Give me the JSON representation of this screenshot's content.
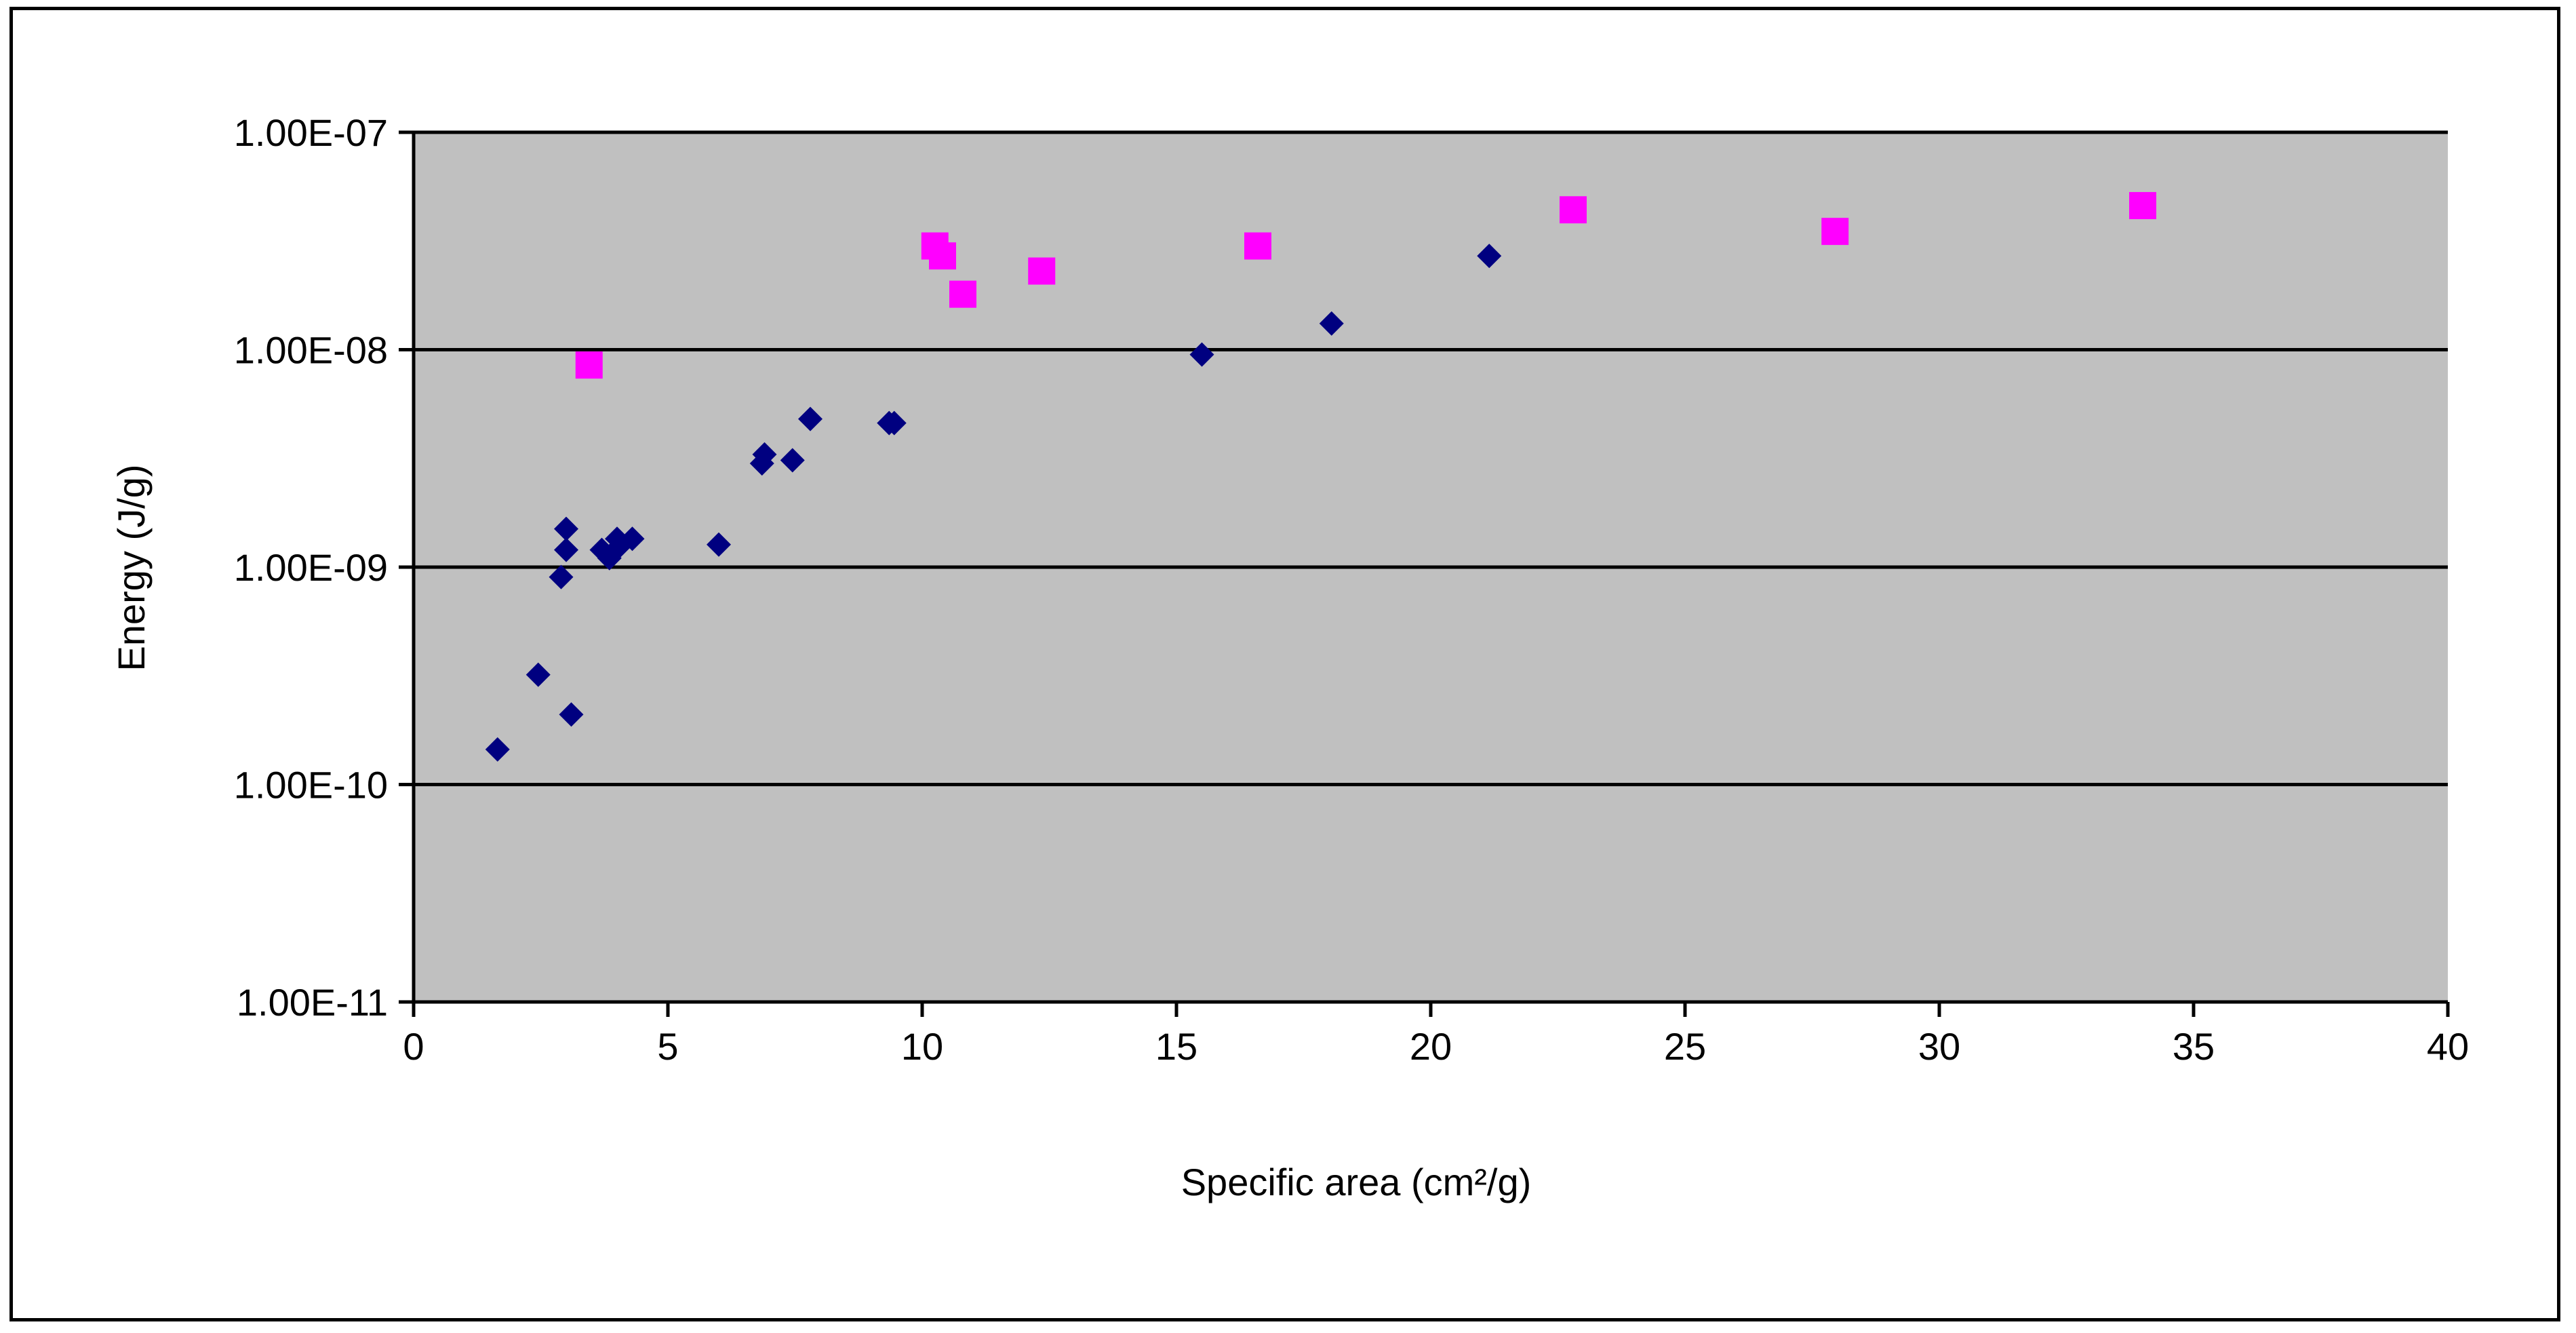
{
  "chart_data": {
    "type": "scatter",
    "title": "",
    "xlabel": "Specific area (cm²/g)",
    "ylabel": "Energy (J/g)",
    "xlim": [
      0,
      40
    ],
    "ylim": [
      1e-11,
      1e-07
    ],
    "y_scale": "log",
    "x_ticks": [
      "0",
      "5",
      "10",
      "15",
      "20",
      "25",
      "30",
      "35",
      "40"
    ],
    "y_ticks": [
      "1.00E-11",
      "1.00E-10",
      "1.00E-09",
      "1.00E-08",
      "1.00E-07"
    ],
    "grid": "horizontal major gridlines",
    "plot_background": "#c0c0c0",
    "legend": "none",
    "series": [
      {
        "marker": "diamond",
        "color": "#000080",
        "points": [
          [
            1.65,
            1.45e-10
          ],
          [
            2.45,
            3.2e-10
          ],
          [
            2.9,
            9e-10
          ],
          [
            3.0,
            1.5e-09
          ],
          [
            3.0,
            1.2e-09
          ],
          [
            3.1,
            2.1e-10
          ],
          [
            3.7,
            1.2e-09
          ],
          [
            3.85,
            1.1e-09
          ],
          [
            4.0,
            1.35e-09
          ],
          [
            4.05,
            1.25e-09
          ],
          [
            4.3,
            1.35e-09
          ],
          [
            6.0,
            1.27e-09
          ],
          [
            6.85,
            3e-09
          ],
          [
            6.9,
            3.3e-09
          ],
          [
            7.45,
            3.1e-09
          ],
          [
            7.8,
            4.8e-09
          ],
          [
            9.35,
            4.6e-09
          ],
          [
            9.45,
            4.6e-09
          ],
          [
            15.5,
            9.5e-09
          ],
          [
            18.05,
            1.32e-08
          ],
          [
            21.15,
            2.7e-08
          ]
        ]
      },
      {
        "marker": "square",
        "color": "#ff00ff",
        "points": [
          [
            3.45,
            8.5e-09
          ],
          [
            10.25,
            3e-08
          ],
          [
            10.4,
            2.7e-08
          ],
          [
            10.8,
            1.8e-08
          ],
          [
            12.35,
            2.3e-08
          ],
          [
            16.6,
            3e-08
          ],
          [
            22.8,
            4.4e-08
          ],
          [
            27.95,
            3.5e-08
          ],
          [
            34.0,
            4.6e-08
          ]
        ]
      }
    ]
  }
}
